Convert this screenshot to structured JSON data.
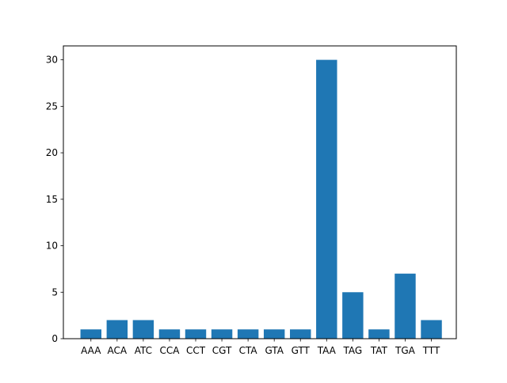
{
  "chart_data": {
    "type": "bar",
    "categories": [
      "AAA",
      "ACA",
      "ATC",
      "CCA",
      "CCT",
      "CGT",
      "CTA",
      "GTA",
      "GTT",
      "TAA",
      "TAG",
      "TAT",
      "TGA",
      "TTT"
    ],
    "values": [
      1,
      2,
      2,
      1,
      1,
      1,
      1,
      1,
      1,
      30,
      5,
      1,
      7,
      2
    ],
    "title": "",
    "xlabel": "",
    "ylabel": "",
    "ylim": [
      0,
      31.5
    ],
    "yticks": [
      0,
      5,
      10,
      15,
      20,
      25,
      30
    ],
    "grid": false,
    "bar_color": "#1f77b4"
  }
}
